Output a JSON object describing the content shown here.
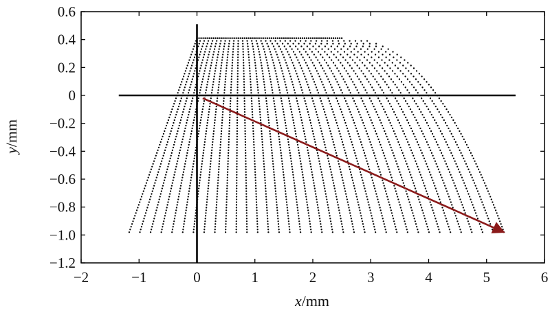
{
  "chart_data": {
    "type": "scatter",
    "title": "",
    "xlabel_var": "x",
    "xlabel_unit": "/mm",
    "ylabel_var": "y",
    "ylabel_unit": "/mm",
    "xlim": [
      -2,
      6
    ],
    "ylim": [
      -1.2,
      0.6
    ],
    "x_ticks": [
      -2,
      -1,
      0,
      1,
      2,
      3,
      4,
      5,
      6
    ],
    "x_tick_labels": [
      "−2",
      "−1",
      "0",
      "1",
      "2",
      "3",
      "4",
      "5",
      "6"
    ],
    "y_ticks": [
      0.6,
      0.4,
      0.2,
      0,
      -0.2,
      -0.4,
      -0.6,
      -0.8,
      -1.0,
      -1.2
    ],
    "y_tick_labels": [
      "0.6",
      "0.4",
      "0.2",
      "0",
      "−0.2",
      "−0.4",
      "−0.6",
      "−0.8",
      "−1.0",
      "−1.2"
    ],
    "grid": false,
    "point_cloud": {
      "top_y": 0.41,
      "bottom_y": -0.98,
      "top_x_start": 0,
      "top_x_end": 2.5,
      "bottom_x_start": -1.17,
      "bottom_x_end": 5.3,
      "color": "#000000"
    },
    "reference_lines": {
      "horizontal": {
        "y": 0,
        "x_start": -1.35,
        "x_end": 5.5
      },
      "vertical": {
        "x": 0,
        "y_start": -1.2,
        "y_end": 0.51
      }
    },
    "arrow": {
      "from": [
        0.1,
        -0.02
      ],
      "to": [
        5.3,
        -0.98
      ],
      "color": "#8b1a1a"
    }
  }
}
